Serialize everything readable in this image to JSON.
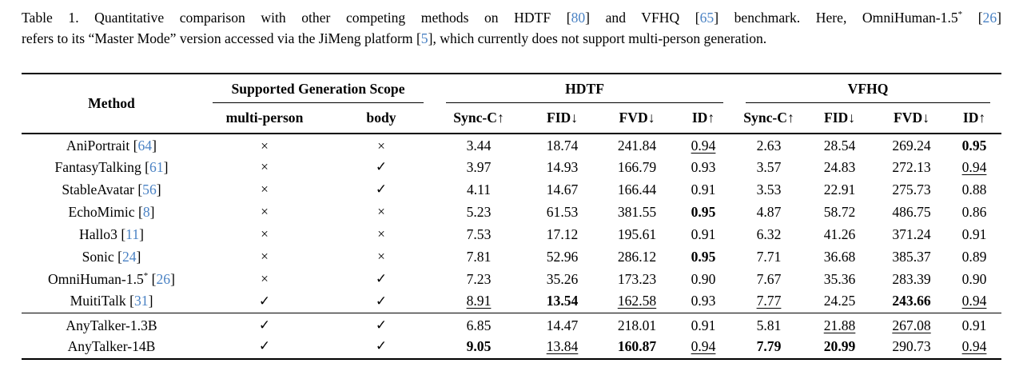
{
  "colors": {
    "text": "#000000",
    "citation": "#4a82c4"
  },
  "symbols": {
    "check": "✓",
    "cross": "×"
  },
  "caption": {
    "lines": [
      {
        "segments": [
          {
            "text": "Table 1. Quantitative comparison with other competing methods on HDTF "
          },
          {
            "cite": "80"
          },
          {
            "text": " and VFHQ "
          },
          {
            "cite": "65"
          },
          {
            "text": " benchmark. Here, OmniHuman-1.5"
          },
          {
            "sup": "*"
          },
          {
            "text": " "
          },
          {
            "cite": "26"
          }
        ]
      },
      {
        "segments": [
          {
            "text": "refers to its “Master Mode” version accessed via the JiMeng platform "
          },
          {
            "cite": "5"
          },
          {
            "text": ", which currently does not support multi-person generation."
          }
        ]
      }
    ]
  },
  "table": {
    "method_header": "Method",
    "groups": [
      {
        "label": "Supported Generation Scope",
        "span": 2
      },
      {
        "label": "HDTF",
        "span": 4
      },
      {
        "label": "VFHQ",
        "span": 4
      }
    ],
    "subheaders": [
      "multi-person",
      "body",
      "Sync-C↑",
      "FID↓",
      "FVD↓",
      "ID↑",
      "Sync-C↑",
      "FID↓",
      "FVD↓",
      "ID↑"
    ],
    "rows": [
      {
        "section": "baselines",
        "method": {
          "name": "AniPortrait",
          "cite": "64"
        },
        "multi_person": "cross",
        "body": "cross",
        "values": [
          {
            "v": "3.44"
          },
          {
            "v": "18.74"
          },
          {
            "v": "241.84"
          },
          {
            "v": "0.94",
            "u": true
          },
          {
            "v": "2.63"
          },
          {
            "v": "28.54"
          },
          {
            "v": "269.24"
          },
          {
            "v": "0.95",
            "b": true
          }
        ]
      },
      {
        "section": "baselines",
        "method": {
          "name": "FantasyTalking",
          "cite": "61"
        },
        "multi_person": "cross",
        "body": "check",
        "values": [
          {
            "v": "3.97"
          },
          {
            "v": "14.93"
          },
          {
            "v": "166.79"
          },
          {
            "v": "0.93"
          },
          {
            "v": "3.57"
          },
          {
            "v": "24.83"
          },
          {
            "v": "272.13"
          },
          {
            "v": "0.94",
            "u": true
          }
        ]
      },
      {
        "section": "baselines",
        "method": {
          "name": "StableAvatar",
          "cite": "56"
        },
        "multi_person": "cross",
        "body": "check",
        "values": [
          {
            "v": "4.11"
          },
          {
            "v": "14.67"
          },
          {
            "v": "166.44"
          },
          {
            "v": "0.91"
          },
          {
            "v": "3.53"
          },
          {
            "v": "22.91"
          },
          {
            "v": "275.73"
          },
          {
            "v": "0.88"
          }
        ]
      },
      {
        "section": "baselines",
        "method": {
          "name": "EchoMimic",
          "cite": "8"
        },
        "multi_person": "cross",
        "body": "cross",
        "values": [
          {
            "v": "5.23"
          },
          {
            "v": "61.53"
          },
          {
            "v": "381.55"
          },
          {
            "v": "0.95",
            "b": true
          },
          {
            "v": "4.87"
          },
          {
            "v": "58.72"
          },
          {
            "v": "486.75"
          },
          {
            "v": "0.86"
          }
        ]
      },
      {
        "section": "baselines",
        "method": {
          "name": "Hallo3",
          "cite": "11"
        },
        "multi_person": "cross",
        "body": "cross",
        "values": [
          {
            "v": "7.53"
          },
          {
            "v": "17.12"
          },
          {
            "v": "195.61"
          },
          {
            "v": "0.91"
          },
          {
            "v": "6.32"
          },
          {
            "v": "41.26"
          },
          {
            "v": "371.24"
          },
          {
            "v": "0.91"
          }
        ]
      },
      {
        "section": "baselines",
        "method": {
          "name": "Sonic",
          "cite": "24"
        },
        "multi_person": "cross",
        "body": "cross",
        "values": [
          {
            "v": "7.81"
          },
          {
            "v": "52.96"
          },
          {
            "v": "286.12"
          },
          {
            "v": "0.95",
            "b": true
          },
          {
            "v": "7.71"
          },
          {
            "v": "36.68"
          },
          {
            "v": "385.37"
          },
          {
            "v": "0.89"
          }
        ]
      },
      {
        "section": "baselines",
        "method": {
          "name": "OmniHuman-1.5",
          "sup": "*",
          "cite": "26"
        },
        "multi_person": "cross",
        "body": "check",
        "values": [
          {
            "v": "7.23"
          },
          {
            "v": "35.26"
          },
          {
            "v": "173.23"
          },
          {
            "v": "0.90"
          },
          {
            "v": "7.67"
          },
          {
            "v": "35.36"
          },
          {
            "v": "283.39"
          },
          {
            "v": "0.90"
          }
        ]
      },
      {
        "section": "baselines",
        "method": {
          "name": "MuitiTalk",
          "cite": "31"
        },
        "multi_person": "check",
        "body": "check",
        "values": [
          {
            "v": "8.91",
            "u": true
          },
          {
            "v": "13.54",
            "b": true
          },
          {
            "v": "162.58",
            "u": true
          },
          {
            "v": "0.93"
          },
          {
            "v": "7.77",
            "u": true
          },
          {
            "v": "24.25"
          },
          {
            "v": "243.66",
            "b": true
          },
          {
            "v": "0.94",
            "u": true
          }
        ]
      },
      {
        "section": "ours",
        "method": {
          "name": "AnyTalker-1.3B"
        },
        "multi_person": "check",
        "body": "check",
        "values": [
          {
            "v": "6.85"
          },
          {
            "v": "14.47"
          },
          {
            "v": "218.01"
          },
          {
            "v": "0.91"
          },
          {
            "v": "5.81"
          },
          {
            "v": "21.88",
            "u": true
          },
          {
            "v": "267.08",
            "u": true
          },
          {
            "v": "0.91"
          }
        ]
      },
      {
        "section": "ours",
        "method": {
          "name": "AnyTalker-14B"
        },
        "multi_person": "check",
        "body": "check",
        "values": [
          {
            "v": "9.05",
            "b": true
          },
          {
            "v": "13.84",
            "u": true
          },
          {
            "v": "160.87",
            "b": true
          },
          {
            "v": "0.94",
            "u": true
          },
          {
            "v": "7.79",
            "b": true
          },
          {
            "v": "20.99",
            "b": true
          },
          {
            "v": "290.73"
          },
          {
            "v": "0.94",
            "u": true
          }
        ]
      }
    ]
  }
}
